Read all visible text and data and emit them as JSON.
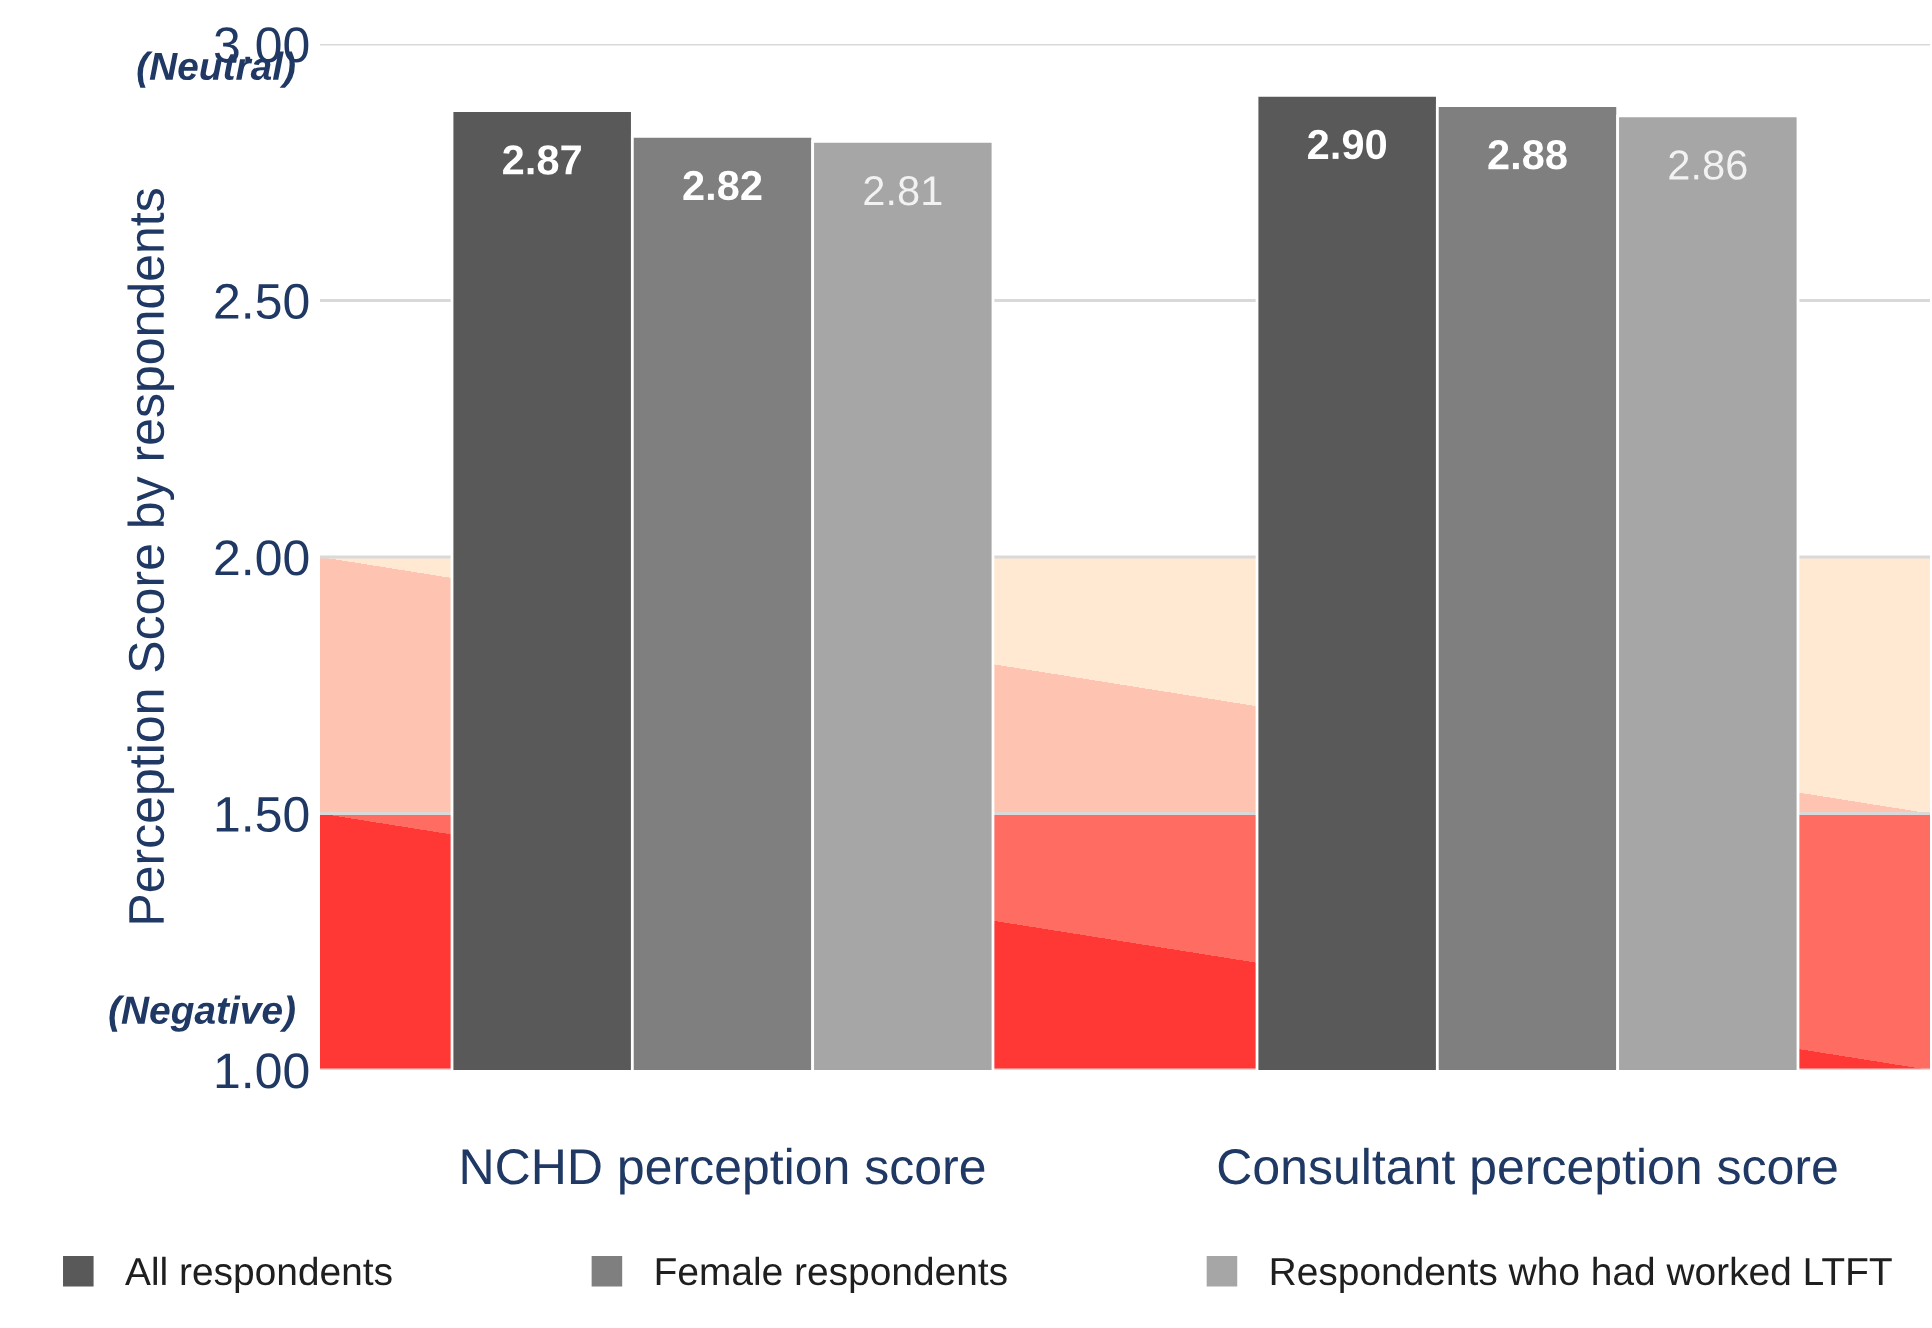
{
  "chart_data": {
    "type": "bar",
    "ylabel": "Perception Score by respondents",
    "categories": [
      "NCHD perception score",
      "Consultant perception score"
    ],
    "series": [
      {
        "name": "All respondents",
        "color": "#595959",
        "values": [
          2.87,
          2.9
        ],
        "value_labels": [
          "2.87",
          "2.90"
        ]
      },
      {
        "name": "Female respondents",
        "color": "#7f7f7f",
        "values": [
          2.82,
          2.88
        ],
        "value_labels": [
          "2.82",
          "2.88"
        ]
      },
      {
        "name": "Respondents who had worked LTFT",
        "color": "#a6a6a6",
        "values": [
          2.81,
          2.86
        ],
        "value_labels": [
          "2.81",
          "2.86"
        ]
      }
    ],
    "ylim": [
      1.0,
      3.0
    ],
    "yticks": [
      {
        "value": 1.0,
        "label": "1.00"
      },
      {
        "value": 1.5,
        "label": "1.50"
      },
      {
        "value": 2.0,
        "label": "2.00"
      },
      {
        "value": 2.5,
        "label": "2.50"
      },
      {
        "value": 3.0,
        "label": "3.00"
      }
    ],
    "grid": "y",
    "legend": "bottom",
    "marker": "square",
    "annotations": [
      "(Neutral)",
      "(Negative)"
    ]
  }
}
